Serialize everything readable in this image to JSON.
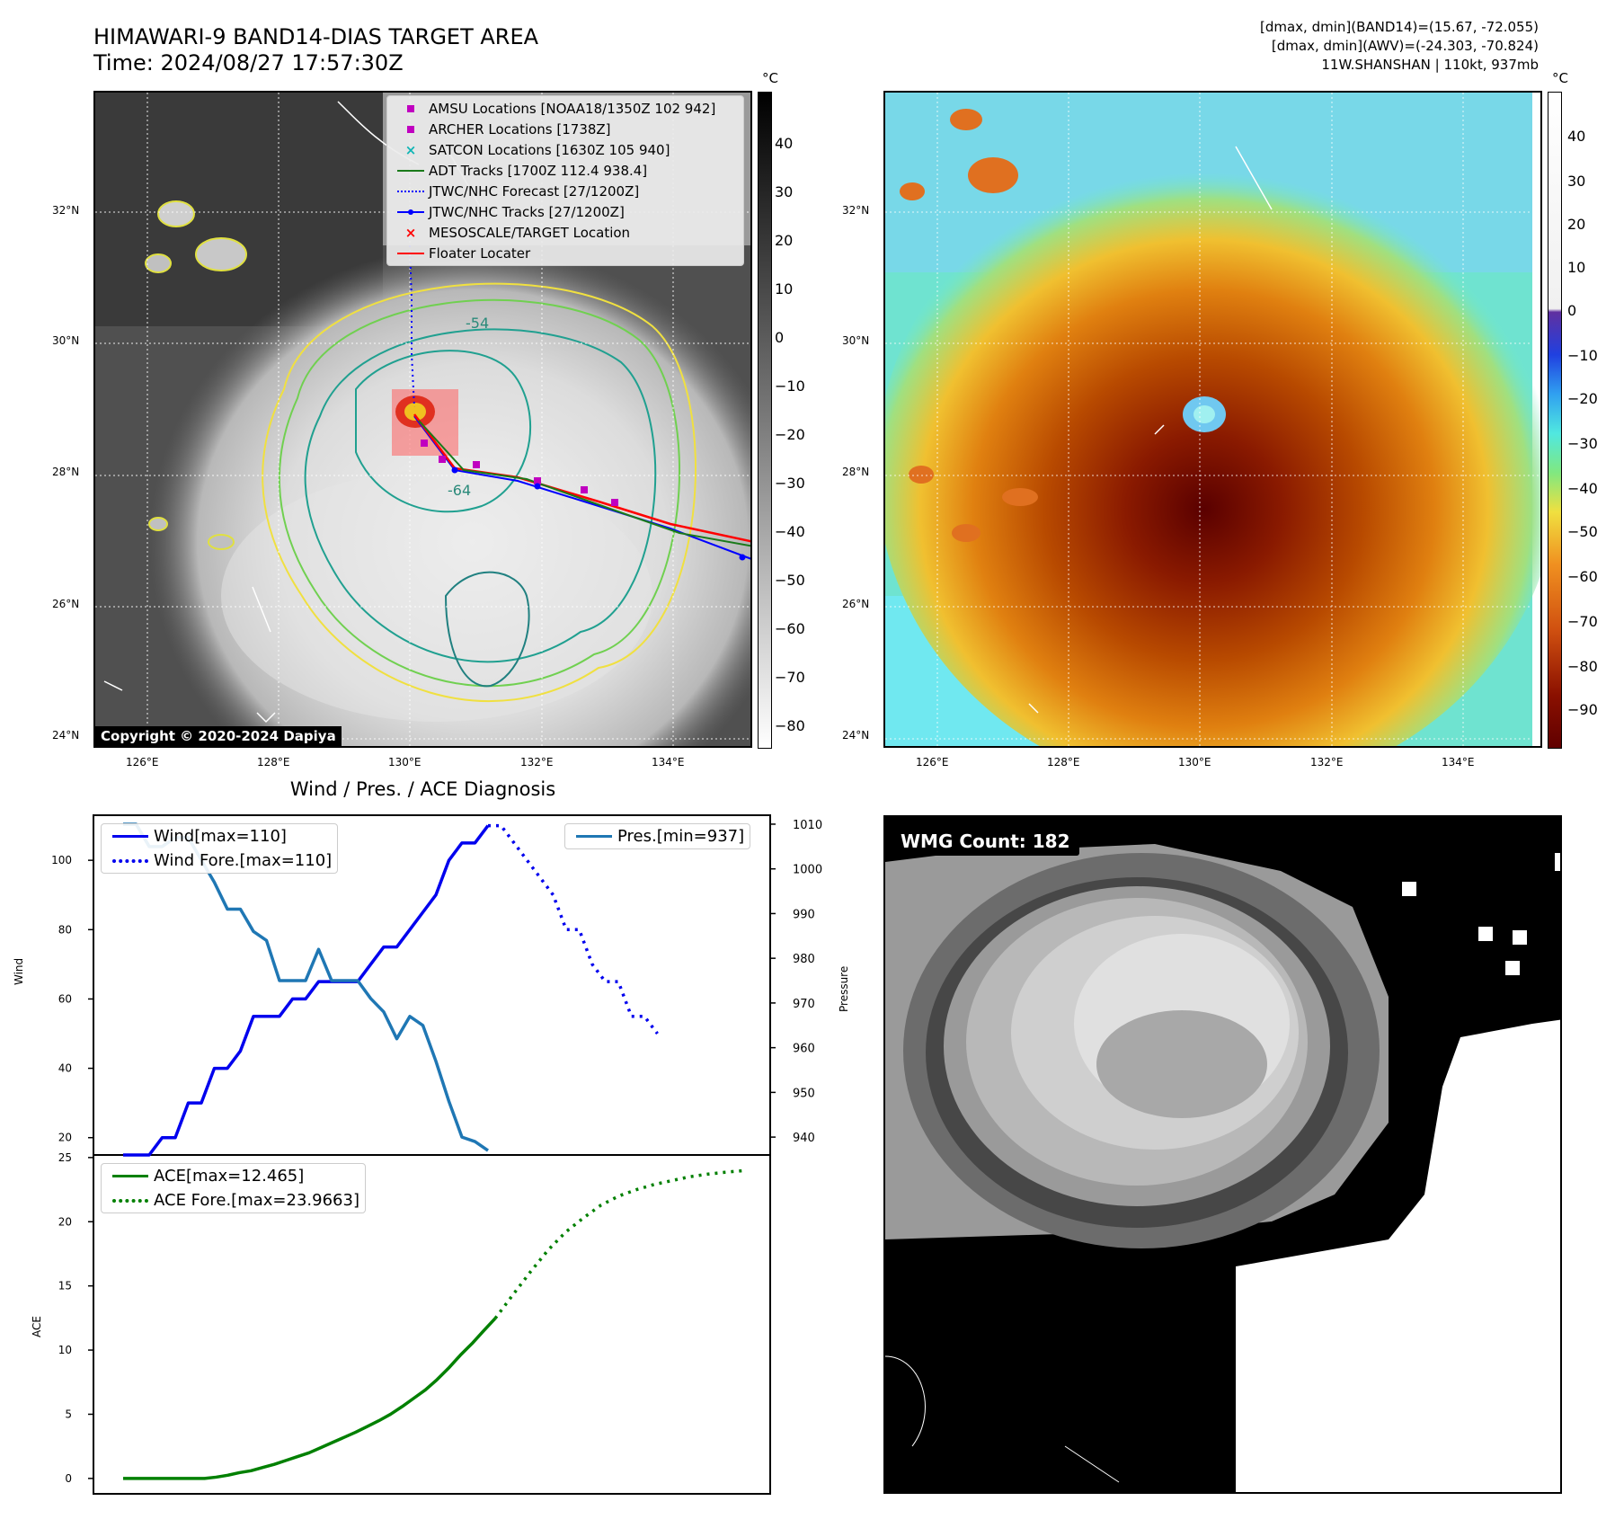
{
  "header": {
    "title_line1": "HIMAWARI-9 BAND14-DIAS TARGET AREA",
    "title_line2": "Time: 2024/08/27 17:57:30Z",
    "info_line1": "[dmax, dmin](BAND14)=(15.67, -72.055)",
    "info_line2": "[dmax, dmin](AWV)=(-24.303, -70.824)",
    "info_line3": "11W.SHANSHAN | 110kt, 937mb"
  },
  "map_axes": {
    "lat_ticks": [
      "32°N",
      "30°N",
      "28°N",
      "26°N",
      "24°N"
    ],
    "lon_ticks": [
      "126°E",
      "128°E",
      "130°E",
      "132°E",
      "134°E"
    ],
    "colorbar_unit": "°C"
  },
  "ir_panel": {
    "colorbar_ticks": [
      "40",
      "30",
      "20",
      "10",
      "0",
      "−10",
      "−20",
      "−30",
      "−40",
      "−50",
      "−60",
      "−70",
      "−80"
    ],
    "copyright": "Copyright © 2020-2024 Dapiya",
    "contour_labels": [
      "-54",
      "-64"
    ],
    "legend": [
      {
        "label": "AMSU Locations [NOAA18/1350Z 102 942]",
        "symbol": "square",
        "color": "#c000c0"
      },
      {
        "label": "ARCHER Locations [1738Z]",
        "symbol": "square",
        "color": "#c000c0"
      },
      {
        "label": "SATCON Locations [1630Z 105 940]",
        "symbol": "x",
        "color": "#10b5b5"
      },
      {
        "label": "ADT Tracks [1700Z 112.4 938.4]",
        "symbol": "line",
        "color": "#1a7a1a"
      },
      {
        "label": "JTWC/NHC Forecast [27/1200Z]",
        "symbol": "dotted",
        "color": "#0000ff"
      },
      {
        "label": "JTWC/NHC Tracks [27/1200Z]",
        "symbol": "dotline",
        "color": "#0000ff"
      },
      {
        "label": "MESOSCALE/TARGET Location",
        "symbol": "x",
        "color": "#ff0000"
      },
      {
        "label": "Floater Locater",
        "symbol": "line",
        "color": "#ff0000"
      }
    ]
  },
  "awv_panel": {
    "colorbar_ticks": [
      "40",
      "30",
      "20",
      "10",
      "0",
      "−10",
      "−20",
      "−30",
      "−40",
      "−50",
      "−60",
      "−70",
      "−80",
      "−90"
    ]
  },
  "diag": {
    "title": "Wind / Pres. / ACE Diagnosis",
    "wind_ylabel": "Wind",
    "pres_ylabel": "Pressure",
    "ace_ylabel": "ACE",
    "wind_ticks": [
      "100",
      "80",
      "60",
      "40",
      "20"
    ],
    "pres_ticks": [
      "1010",
      "1000",
      "990",
      "980",
      "970",
      "960",
      "950",
      "940"
    ],
    "ace_ticks": [
      "25",
      "20",
      "15",
      "10",
      "5",
      "0"
    ],
    "legend_wind": "Wind[max=110]",
    "legend_wind_fore": "Wind Fore.[max=110]",
    "legend_pres": "Pres.[min=937]",
    "legend_ace": "ACE[max=12.465]",
    "legend_ace_fore": "ACE Fore.[max=23.9663]"
  },
  "wmg_panel": {
    "label": "WMG Count: 182"
  },
  "chart_data": [
    {
      "type": "line",
      "title": "Wind / Pres. / ACE Diagnosis",
      "ylabel": "Wind",
      "ylim": [
        15,
        113
      ],
      "series": [
        {
          "name": "Wind[max=110]",
          "style": "solid",
          "color": "#0000ee",
          "values": [
            15,
            15,
            15,
            20,
            20,
            30,
            30,
            40,
            40,
            45,
            55,
            55,
            55,
            60,
            60,
            65,
            65,
            65,
            65,
            70,
            75,
            75,
            80,
            85,
            90,
            100,
            105,
            105,
            110
          ]
        },
        {
          "name": "Wind Fore.[max=110]",
          "style": "dotted",
          "color": "#0000ee",
          "values": [
            110,
            110,
            105,
            100,
            95,
            90,
            80,
            80,
            70,
            65,
            65,
            55,
            55,
            50
          ]
        }
      ]
    },
    {
      "type": "line",
      "ylabel": "Pressure",
      "ylim": [
        936,
        1012
      ],
      "series": [
        {
          "name": "Pres.[min=937]",
          "style": "solid",
          "color": "#1f77b4",
          "values": [
            1010,
            1010,
            1005,
            1005,
            1007,
            1007,
            1002,
            997,
            991,
            991,
            986,
            984,
            975,
            975,
            975,
            982,
            975,
            975,
            975,
            971,
            968,
            962,
            967,
            965,
            957,
            948,
            940,
            939,
            937
          ]
        }
      ]
    },
    {
      "type": "line",
      "ylabel": "ACE",
      "ylim": [
        -1.2,
        25.2
      ],
      "series": [
        {
          "name": "ACE[max=12.465]",
          "style": "solid",
          "color": "#008000",
          "values": [
            0,
            0,
            0,
            0,
            0,
            0,
            0,
            0,
            0.1,
            0.25,
            0.45,
            0.6,
            0.85,
            1.1,
            1.4,
            1.7,
            2.0,
            2.4,
            2.8,
            3.2,
            3.6,
            4.05,
            4.5,
            5.0,
            5.6,
            6.25,
            6.9,
            7.7,
            8.6,
            9.6,
            10.5,
            11.5,
            12.465
          ]
        },
        {
          "name": "ACE Fore.[max=23.9663]",
          "style": "dotted",
          "color": "#008000",
          "values": [
            12.465,
            14.3,
            16.1,
            17.8,
            19.2,
            20.3,
            21.3,
            22.0,
            22.5,
            22.9,
            23.2,
            23.5,
            23.7,
            23.85,
            23.97
          ]
        }
      ]
    }
  ]
}
